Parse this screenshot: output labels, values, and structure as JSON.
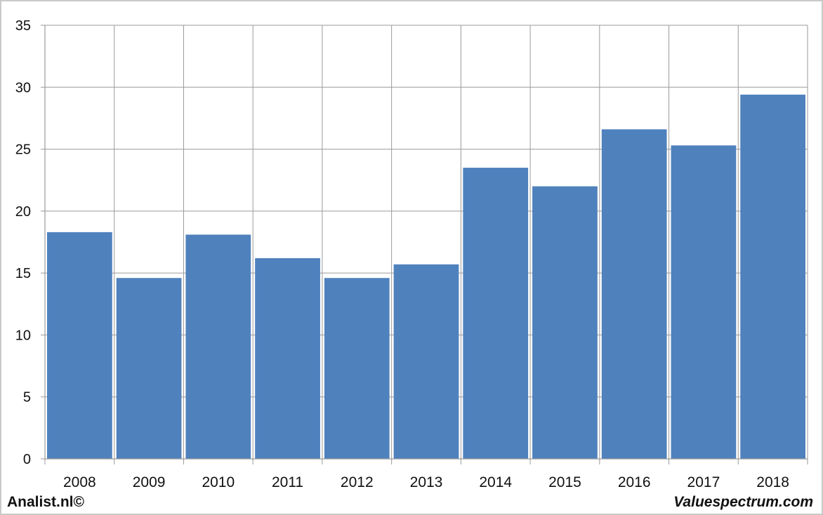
{
  "chart_data": {
    "type": "bar",
    "categories": [
      "2008",
      "2009",
      "2010",
      "2011",
      "2012",
      "2013",
      "2014",
      "2015",
      "2016",
      "2017",
      "2018"
    ],
    "values": [
      18.3,
      14.6,
      18.1,
      16.2,
      14.6,
      15.7,
      23.5,
      22.0,
      26.6,
      25.3,
      29.4
    ],
    "title": "",
    "xlabel": "",
    "ylabel": "",
    "ylim": [
      0,
      35
    ],
    "yticks": [
      0,
      5,
      10,
      15,
      20,
      25,
      30,
      35
    ],
    "grid": true,
    "legend": "none",
    "bar_color": "#4f81bd"
  },
  "footer": {
    "left": "Analist.nl©",
    "right": "Valuespectrum.com"
  },
  "colors": {
    "grid": "#9a9a9a",
    "frame_border": "#c9c9c9",
    "text": "#111111"
  }
}
